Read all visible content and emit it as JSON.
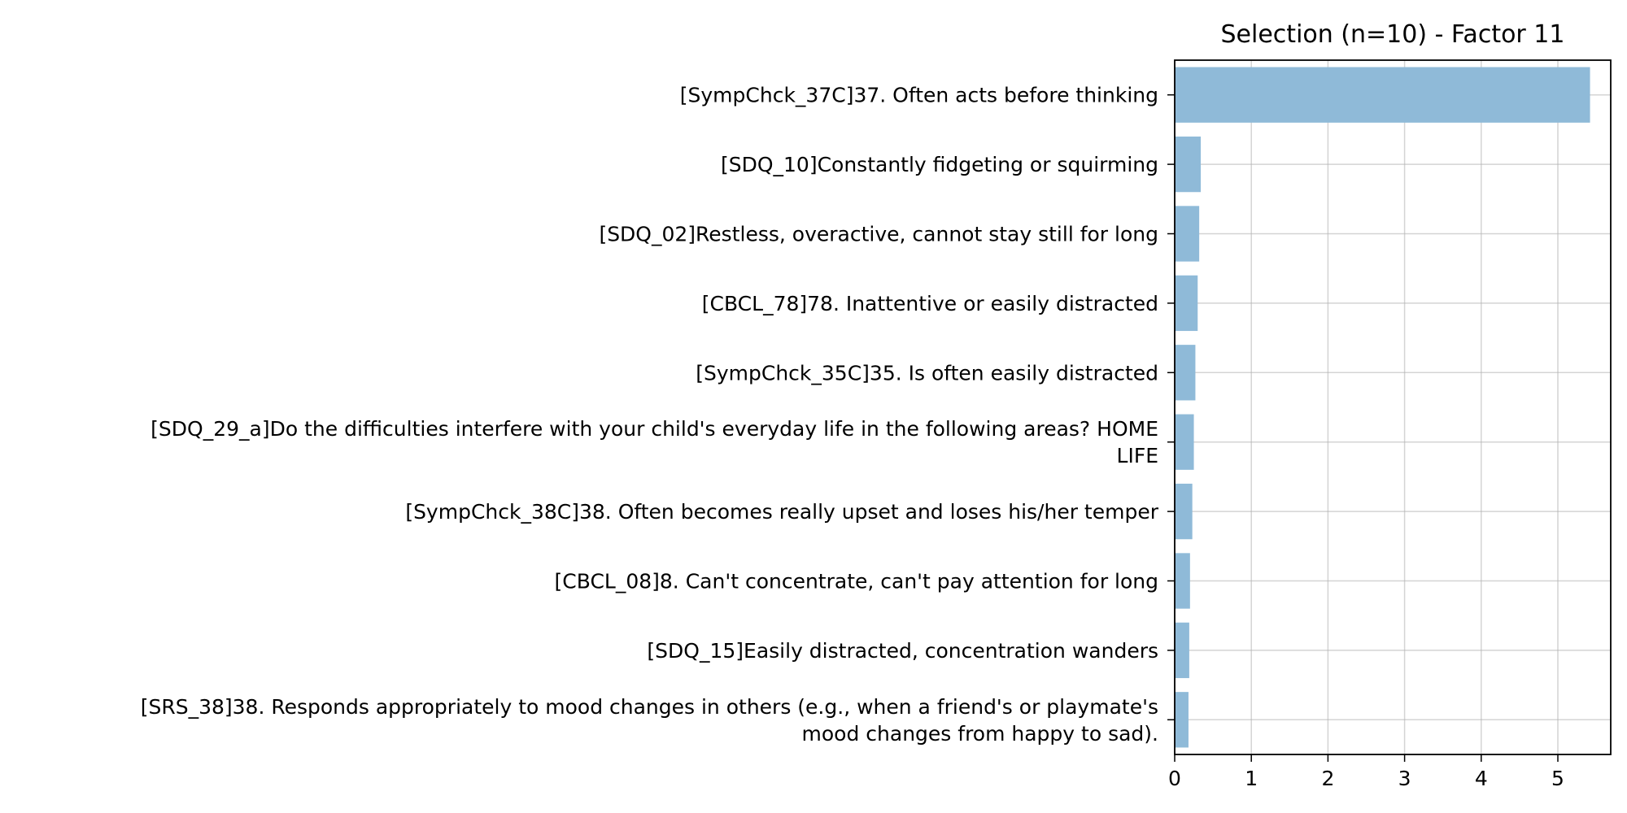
{
  "chart_data": {
    "type": "bar",
    "orientation": "horizontal",
    "title": "Selection (n=10) - Factor 11",
    "xlabel": "",
    "ylabel": "",
    "categories": [
      [
        "[SympChck_37C]37. Often acts before thinking"
      ],
      [
        "[SDQ_10]Constantly fidgeting or squirming"
      ],
      [
        "[SDQ_02]Restless, overactive, cannot stay still for long"
      ],
      [
        "[CBCL_78]78. Inattentive or easily distracted"
      ],
      [
        "[SympChck_35C]35. Is often easily distracted"
      ],
      [
        "[SDQ_29_a]Do the difficulties interfere with your child's everyday life in the following areas? HOME",
        "LIFE"
      ],
      [
        "[SympChck_38C]38. Often becomes really upset and loses his/her temper"
      ],
      [
        "[CBCL_08]8. Can't concentrate, can't pay attention for long"
      ],
      [
        "[SDQ_15]Easily distracted, concentration wanders"
      ],
      [
        "[SRS_38]38. Responds appropriately to mood changes in others (e.g., when a friend's or playmate's",
        "mood changes from happy to sad)."
      ]
    ],
    "values": [
      5.42,
      0.34,
      0.32,
      0.3,
      0.27,
      0.25,
      0.23,
      0.2,
      0.19,
      0.18
    ],
    "xlim": [
      0,
      5.69
    ],
    "xticks": [
      "0",
      "1",
      "2",
      "3",
      "4",
      "5"
    ],
    "grid": true,
    "bar_color": "#8fbad8"
  }
}
